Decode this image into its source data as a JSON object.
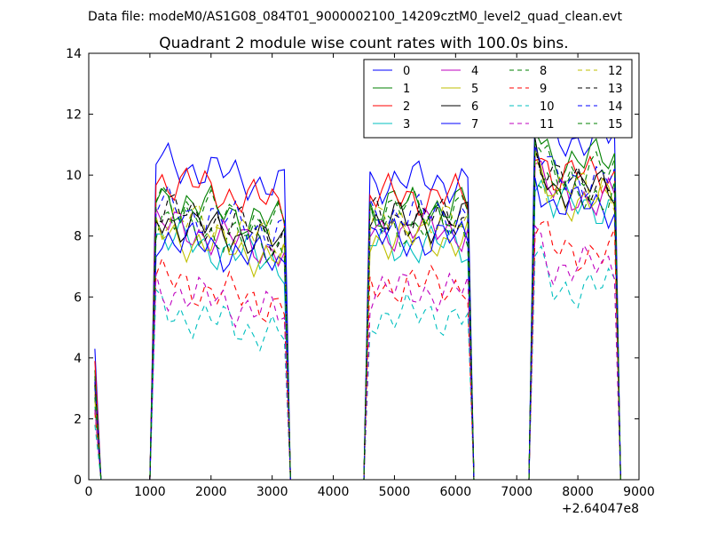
{
  "header": {
    "data_file": "Data file: modeM0/AS1G08_084T01_9000002100_14209cztM0_level2_quad_clean.evt"
  },
  "chart_data": {
    "type": "line",
    "title": "Quadrant 2 module wise count rates with 100.0s bins.",
    "xlabel": "",
    "ylabel": "",
    "x_offset_label": "+2.64047e8",
    "xlim": [
      0,
      9000
    ],
    "ylim": [
      0,
      14
    ],
    "x_ticks": [
      0,
      1000,
      2000,
      3000,
      4000,
      5000,
      6000,
      7000,
      8000,
      9000
    ],
    "y_ticks": [
      0,
      2,
      4,
      6,
      8,
      10,
      12,
      14
    ],
    "legend_position": "top-right",
    "legend_columns": 4,
    "grid": false,
    "x": [
      100,
      200,
      300,
      400,
      500,
      600,
      700,
      800,
      900,
      1000,
      1100,
      1200,
      1300,
      1400,
      1500,
      1600,
      1700,
      1800,
      1900,
      2000,
      2100,
      2200,
      2300,
      2400,
      2500,
      2600,
      2700,
      2800,
      2900,
      3000,
      3100,
      3200,
      3300,
      3400,
      3500,
      3600,
      3700,
      3800,
      3900,
      4000,
      4100,
      4200,
      4300,
      4400,
      4500,
      4600,
      4700,
      4800,
      4900,
      5000,
      5100,
      5200,
      5300,
      5400,
      5500,
      5600,
      5700,
      5800,
      5900,
      6000,
      6100,
      6200,
      6300,
      6400,
      6500,
      6600,
      6700,
      6800,
      6900,
      7000,
      7100,
      7200,
      7300,
      7400,
      7500,
      7600,
      7700,
      7800,
      7900,
      8000,
      8100,
      8200,
      8300,
      8400,
      8500,
      8600,
      8700
    ],
    "segment_levels": [
      {
        "from": 1100,
        "to": 3200
      },
      {
        "from": 4600,
        "to": 6200
      },
      {
        "from": 7300,
        "to": 8600
      }
    ],
    "series": [
      {
        "name": "0",
        "color": "#0000ff",
        "dash": "solid",
        "start": 4.3,
        "levels": [
          10.5,
          9.8,
          11.2
        ]
      },
      {
        "name": "1",
        "color": "#008000",
        "dash": "solid",
        "start": 3.6,
        "levels": [
          9.3,
          9.0,
          10.5
        ]
      },
      {
        "name": "2",
        "color": "#ff0000",
        "dash": "solid",
        "start": 3.9,
        "levels": [
          9.9,
          9.3,
          10.0
        ]
      },
      {
        "name": "3",
        "color": "#00bfbf",
        "dash": "solid",
        "start": 2.4,
        "levels": [
          8.0,
          7.7,
          9.0
        ]
      },
      {
        "name": "4",
        "color": "#bf00bf",
        "dash": "solid",
        "start": 2.8,
        "levels": [
          8.4,
          8.2,
          9.3
        ]
      },
      {
        "name": "5",
        "color": "#bfbf00",
        "dash": "solid",
        "start": 2.6,
        "levels": [
          8.1,
          7.9,
          9.2
        ]
      },
      {
        "name": "6",
        "color": "#000000",
        "dash": "solid",
        "start": 3.1,
        "levels": [
          8.6,
          8.5,
          9.6
        ]
      },
      {
        "name": "7",
        "color": "#0000ff",
        "dash": "solid",
        "start": 3.0,
        "levels": [
          8.0,
          7.9,
          9.0
        ]
      },
      {
        "name": "8",
        "color": "#008000",
        "dash": "dashed",
        "start": 2.7,
        "levels": [
          8.5,
          8.3,
          9.4
        ]
      },
      {
        "name": "9",
        "color": "#ff0000",
        "dash": "dashed",
        "start": 2.2,
        "levels": [
          6.6,
          6.4,
          7.5
        ]
      },
      {
        "name": "10",
        "color": "#00bfbf",
        "dash": "dashed",
        "start": 1.8,
        "levels": [
          5.6,
          5.4,
          6.3
        ]
      },
      {
        "name": "11",
        "color": "#bf00bf",
        "dash": "dashed",
        "start": 2.3,
        "levels": [
          6.3,
          6.2,
          7.0
        ]
      },
      {
        "name": "12",
        "color": "#bfbf00",
        "dash": "dashed",
        "start": 2.9,
        "levels": [
          8.7,
          8.4,
          9.5
        ]
      },
      {
        "name": "13",
        "color": "#000000",
        "dash": "dashed",
        "start": 3.2,
        "levels": [
          8.9,
          8.6,
          9.8
        ]
      },
      {
        "name": "14",
        "color": "#0000ff",
        "dash": "dashed",
        "start": 3.3,
        "levels": [
          9.0,
          8.7,
          9.9
        ]
      },
      {
        "name": "15",
        "color": "#008000",
        "dash": "dashed",
        "start": 3.4,
        "levels": [
          9.2,
          8.9,
          10.1
        ]
      }
    ]
  }
}
